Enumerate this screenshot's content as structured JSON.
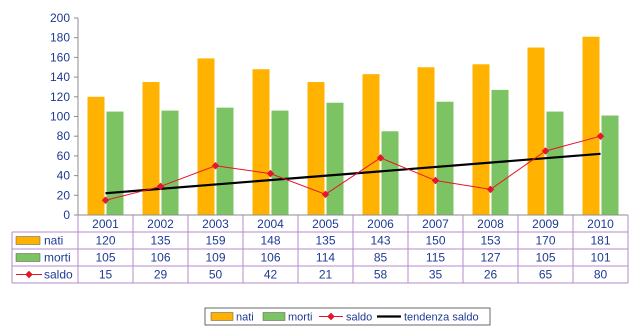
{
  "chart_data": {
    "type": "bar",
    "categories": [
      "2001",
      "2002",
      "2003",
      "2004",
      "2005",
      "2006",
      "2007",
      "2008",
      "2009",
      "2010"
    ],
    "series": [
      {
        "name": "nati",
        "type": "bar",
        "color": "#FFB300",
        "values": [
          120,
          135,
          159,
          148,
          135,
          143,
          150,
          153,
          170,
          181
        ]
      },
      {
        "name": "morti",
        "type": "bar",
        "color": "#7CC364",
        "values": [
          105,
          106,
          109,
          106,
          114,
          85,
          115,
          127,
          105,
          101
        ]
      },
      {
        "name": "saldo",
        "type": "line",
        "color": "#E8142B",
        "marker": "diamond",
        "values": [
          15,
          29,
          50,
          42,
          21,
          58,
          35,
          26,
          65,
          80
        ]
      }
    ],
    "trendline": {
      "name": "tendenza saldo",
      "of": "saldo",
      "type": "linear",
      "color": "#000000"
    },
    "ylim": [
      0,
      200
    ],
    "yticks": [
      0,
      20,
      40,
      60,
      80,
      100,
      120,
      140,
      160,
      180,
      200
    ],
    "grid": false,
    "data_table": true,
    "legend_position": "bottom"
  }
}
